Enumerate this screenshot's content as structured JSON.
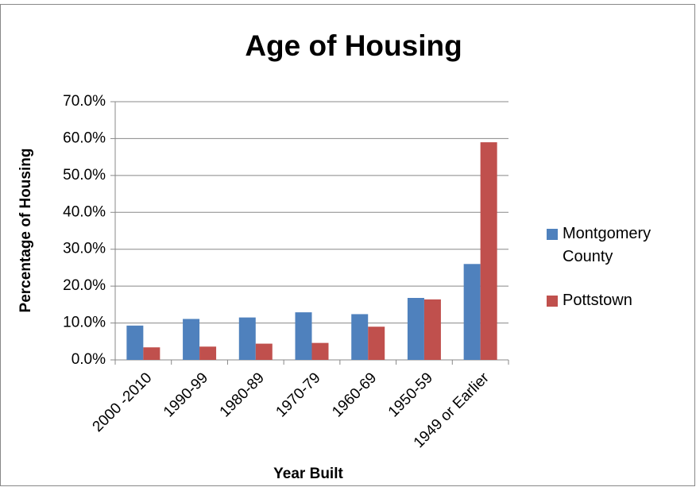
{
  "chart_data": {
    "type": "bar",
    "title": "Age of Housing",
    "x_label": "Year Built",
    "y_label": "Percentage of Housing",
    "categories": [
      "2000 -2010",
      "1990-99",
      "1980-89",
      "1970-79",
      "1960-69",
      "1950-59",
      "1949 or Earlier"
    ],
    "series": [
      {
        "name": "Montgomery County",
        "color": "#4f81bd",
        "values": [
          9.3,
          11.1,
          11.5,
          12.9,
          12.4,
          16.8,
          26.0
        ]
      },
      {
        "name": "Pottstown",
        "color": "#c0504d",
        "values": [
          3.4,
          3.6,
          4.4,
          4.6,
          9.0,
          16.4,
          59.0
        ]
      }
    ],
    "ylim": [
      0,
      70
    ],
    "yticks": [
      {
        "value": 0,
        "label": "0.0%"
      },
      {
        "value": 10,
        "label": "10.0%"
      },
      {
        "value": 20,
        "label": "20.0%"
      },
      {
        "value": 30,
        "label": "30.0%"
      },
      {
        "value": 40,
        "label": "40.0%"
      },
      {
        "value": 50,
        "label": "50.0%"
      },
      {
        "value": 60,
        "label": "60.0%"
      },
      {
        "value": 70,
        "label": "70.0%"
      }
    ],
    "grid": true,
    "legend": "right"
  }
}
